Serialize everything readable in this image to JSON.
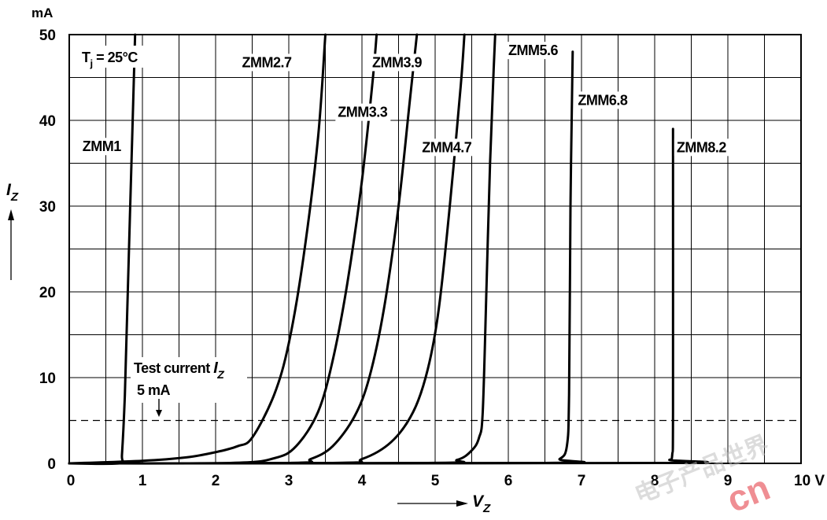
{
  "chart_data": {
    "type": "line",
    "title": "",
    "xlabel": "V",
    "xlabel_subscript": "Z",
    "ylabel": "I",
    "ylabel_subscript": "Z",
    "y_unit": "mA",
    "x_unit_suffix": "10 V",
    "xlim": [
      0,
      10
    ],
    "ylim": [
      0,
      50
    ],
    "x_ticks": [
      "0",
      "1",
      "2",
      "3",
      "4",
      "5",
      "6",
      "7",
      "8",
      "9",
      "10 V"
    ],
    "y_ticks": [
      "0",
      "10",
      "20",
      "30",
      "40",
      "50"
    ],
    "grid": true,
    "condition": {
      "text": "T",
      "subscript": "j",
      "rest": " = 25°C"
    },
    "test_current": {
      "label": "Test current ",
      "symbol": "I",
      "subscript": "Z",
      "value_label": "5 mA",
      "value": 5
    },
    "series": [
      {
        "name": "ZMM1",
        "points": [
          [
            0,
            0
          ],
          [
            0.7,
            0.02
          ],
          [
            0.72,
            1
          ],
          [
            0.76,
            8
          ],
          [
            0.8,
            20
          ],
          [
            0.86,
            38
          ],
          [
            0.9,
            50
          ]
        ]
      },
      {
        "name": "ZMM2.7",
        "points": [
          [
            0,
            0
          ],
          [
            1.0,
            0.3
          ],
          [
            1.6,
            0.7
          ],
          [
            2.0,
            1.3
          ],
          [
            2.3,
            2.0
          ],
          [
            2.5,
            3.0
          ],
          [
            2.8,
            8
          ],
          [
            3.0,
            14
          ],
          [
            3.2,
            24
          ],
          [
            3.4,
            38
          ],
          [
            3.5,
            50
          ]
        ]
      },
      {
        "name": "ZMM3.3",
        "points": [
          [
            0,
            0
          ],
          [
            2.2,
            0.05
          ],
          [
            2.8,
            0.6
          ],
          [
            3.1,
            2.0
          ],
          [
            3.4,
            6
          ],
          [
            3.6,
            12
          ],
          [
            3.8,
            21
          ],
          [
            4.0,
            33
          ],
          [
            4.15,
            45
          ],
          [
            4.2,
            50
          ]
        ]
      },
      {
        "name": "ZMM3.9",
        "points": [
          [
            0,
            0
          ],
          [
            3.0,
            0.05
          ],
          [
            3.3,
            0.5
          ],
          [
            3.6,
            2.0
          ],
          [
            3.9,
            5.5
          ],
          [
            4.1,
            10
          ],
          [
            4.3,
            18
          ],
          [
            4.5,
            30
          ],
          [
            4.65,
            42
          ],
          [
            4.75,
            50
          ]
        ]
      },
      {
        "name": "ZMM4.7",
        "points": [
          [
            0,
            0
          ],
          [
            3.6,
            0.05
          ],
          [
            4.0,
            0.5
          ],
          [
            4.4,
            2.5
          ],
          [
            4.7,
            6
          ],
          [
            4.9,
            11
          ],
          [
            5.05,
            18
          ],
          [
            5.2,
            30
          ],
          [
            5.35,
            44
          ],
          [
            5.4,
            50
          ]
        ]
      },
      {
        "name": "ZMM5.6",
        "points": [
          [
            0,
            0
          ],
          [
            4.9,
            0.05
          ],
          [
            5.3,
            0.4
          ],
          [
            5.5,
            1.5
          ],
          [
            5.6,
            3
          ],
          [
            5.65,
            6
          ],
          [
            5.7,
            20
          ],
          [
            5.75,
            35
          ],
          [
            5.8,
            46
          ],
          [
            5.82,
            50
          ]
        ]
      },
      {
        "name": "ZMM6.8",
        "points": [
          [
            0,
            0
          ],
          [
            6.5,
            0.05
          ],
          [
            6.7,
            0.5
          ],
          [
            6.8,
            2
          ],
          [
            6.83,
            8
          ],
          [
            6.85,
            30
          ],
          [
            6.88,
            48
          ]
        ]
      },
      {
        "name": "ZMM8.2",
        "points": [
          [
            0,
            0
          ],
          [
            8.1,
            0.05
          ],
          [
            8.2,
            0.4
          ],
          [
            8.24,
            1
          ],
          [
            8.25,
            6
          ],
          [
            8.25,
            39
          ]
        ]
      }
    ],
    "series_labels": [
      "ZMM1",
      "ZMM2.7",
      "ZMM3.3",
      "ZMM3.9",
      "ZMM4.7",
      "ZMM5.6",
      "ZMM6.8",
      "ZMM8.2"
    ]
  },
  "watermark": {
    "cjk": "电子产品世界",
    "latin": "cn"
  }
}
